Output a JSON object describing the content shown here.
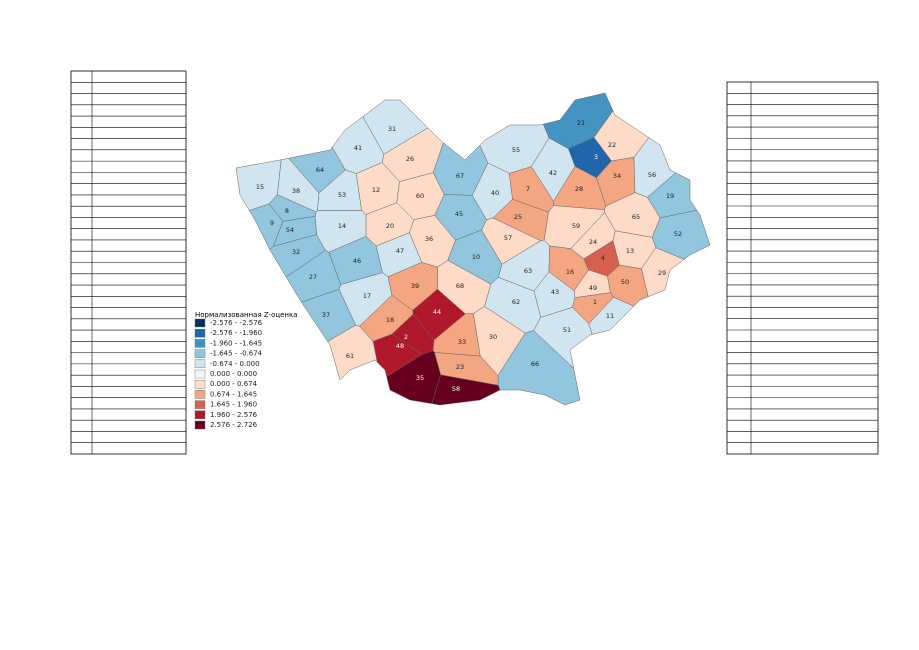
{
  "map": {
    "legend": {
      "title": "Нормализованная Z-оценка",
      "items": [
        {
          "label": "-2.576 - -2.576",
          "color": "#053061"
        },
        {
          "label": "-2.576 - -1.960",
          "color": "#2166ac"
        },
        {
          "label": "-1.960 - -1.645",
          "color": "#4393c3"
        },
        {
          "label": "-1.645 - -0.674",
          "color": "#92c5de"
        },
        {
          "label": "-0.674 - 0.000",
          "color": "#d1e5f0"
        },
        {
          "label": "0.000 - 0.000",
          "color": "#f7f7f7"
        },
        {
          "label": "0.000 - 0.674",
          "color": "#fddbc7"
        },
        {
          "label": "0.674 - 1.645",
          "color": "#f4a582"
        },
        {
          "label": "1.645 - 1.960",
          "color": "#d6604d"
        },
        {
          "label": "1.960 - 2.576",
          "color": "#b2182b"
        },
        {
          "label": "2.576 - 2.726",
          "color": "#67001f"
        }
      ]
    },
    "regions": [
      {
        "label": "31",
        "color": "#d1e5f0"
      },
      {
        "label": "26",
        "color": "#fddbc7"
      },
      {
        "label": "41",
        "color": "#d1e5f0"
      },
      {
        "label": "64",
        "color": "#92c5de"
      },
      {
        "label": "15",
        "color": "#d1e5f0"
      },
      {
        "label": "38",
        "color": "#d1e5f0"
      },
      {
        "label": "53",
        "color": "#d1e5f0"
      },
      {
        "label": "12",
        "color": "#fddbc7"
      },
      {
        "label": "60",
        "color": "#fddbc7"
      },
      {
        "label": "67",
        "color": "#92c5de"
      },
      {
        "label": "40",
        "color": "#d1e5f0"
      },
      {
        "label": "55",
        "color": "#d1e5f0"
      },
      {
        "label": "21",
        "color": "#4393c3"
      },
      {
        "label": "22",
        "color": "#fddbc7"
      },
      {
        "label": "3",
        "color": "#2166ac"
      },
      {
        "label": "42",
        "color": "#d1e5f0"
      },
      {
        "label": "7",
        "color": "#f4a582"
      },
      {
        "label": "28",
        "color": "#f4a582"
      },
      {
        "label": "34",
        "color": "#f4a582"
      },
      {
        "label": "56",
        "color": "#d1e5f0"
      },
      {
        "label": "19",
        "color": "#92c5de"
      },
      {
        "label": "65",
        "color": "#fddbc7"
      },
      {
        "label": "52",
        "color": "#92c5de"
      },
      {
        "label": "13",
        "color": "#fddbc7"
      },
      {
        "label": "29",
        "color": "#fddbc7"
      },
      {
        "label": "59",
        "color": "#fddbc7"
      },
      {
        "label": "24",
        "color": "#fddbc7"
      },
      {
        "label": "57",
        "color": "#fddbc7"
      },
      {
        "label": "25",
        "color": "#f4a582"
      },
      {
        "label": "45",
        "color": "#92c5de"
      },
      {
        "label": "36",
        "color": "#fddbc7"
      },
      {
        "label": "20",
        "color": "#fddbc7"
      },
      {
        "label": "47",
        "color": "#d1e5f0"
      },
      {
        "label": "14",
        "color": "#d1e5f0"
      },
      {
        "label": "9",
        "color": "#92c5de"
      },
      {
        "label": "8",
        "color": "#92c5de"
      },
      {
        "label": "54",
        "color": "#92c5de"
      },
      {
        "label": "32",
        "color": "#92c5de"
      },
      {
        "label": "27",
        "color": "#92c5de"
      },
      {
        "label": "46",
        "color": "#92c5de"
      },
      {
        "label": "10",
        "color": "#92c5de"
      },
      {
        "label": "63",
        "color": "#d1e5f0"
      },
      {
        "label": "16",
        "color": "#f4a582"
      },
      {
        "label": "4",
        "color": "#d6604d"
      },
      {
        "label": "50",
        "color": "#f4a582"
      },
      {
        "label": "49",
        "color": "#fddbc7"
      },
      {
        "label": "1",
        "color": "#f4a582"
      },
      {
        "label": "43",
        "color": "#d1e5f0"
      },
      {
        "label": "62",
        "color": "#d1e5f0"
      },
      {
        "label": "11",
        "color": "#d1e5f0"
      },
      {
        "label": "51",
        "color": "#d1e5f0"
      },
      {
        "label": "66",
        "color": "#92c5de"
      },
      {
        "label": "30",
        "color": "#fddbc7"
      },
      {
        "label": "23",
        "color": "#f4a582"
      },
      {
        "label": "33",
        "color": "#f4a582"
      },
      {
        "label": "68",
        "color": "#fddbc7"
      },
      {
        "label": "39",
        "color": "#f4a582"
      },
      {
        "label": "44",
        "color": "#b2182b"
      },
      {
        "label": "17",
        "color": "#d1e5f0"
      },
      {
        "label": "37",
        "color": "#92c5de"
      },
      {
        "label": "18",
        "color": "#f4a582"
      },
      {
        "label": "2",
        "color": "#b2182b"
      },
      {
        "label": "48",
        "color": "#b2182b"
      },
      {
        "label": "61",
        "color": "#fddbc7"
      },
      {
        "label": "35",
        "color": "#67001f"
      },
      {
        "label": "58",
        "color": "#67001f"
      }
    ]
  }
}
